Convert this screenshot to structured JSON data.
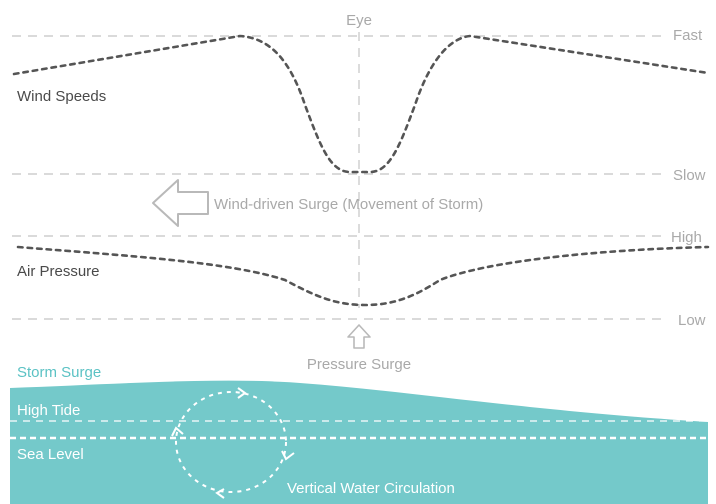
{
  "labels": {
    "eye": "Eye",
    "fast": "Fast",
    "slow": "Slow",
    "high": "High",
    "low": "Low",
    "wind_speeds": "Wind Speeds",
    "air_pressure": "Air Pressure",
    "wind_surge": "Wind-driven Surge (Movement of Storm)",
    "pressure_surge": "Pressure Surge",
    "storm_surge": "Storm Surge",
    "high_tide": "High Tide",
    "sea_level": "Sea Level",
    "vertical_circulation": "Vertical Water Circulation"
  },
  "colors": {
    "water": "#74c9ca",
    "storm_surge_text": "#5bc2c4",
    "guide_lines": "#c4c4c4",
    "curves": "#555555",
    "labels_light": "#a9a9a9",
    "labels_dark": "#4a4a4a"
  },
  "icons": {
    "wind_surge_arrow": "arrow-left-outline-icon",
    "pressure_surge_arrow": "arrow-up-outline-icon",
    "circulation": "circular-arrows-icon"
  }
}
